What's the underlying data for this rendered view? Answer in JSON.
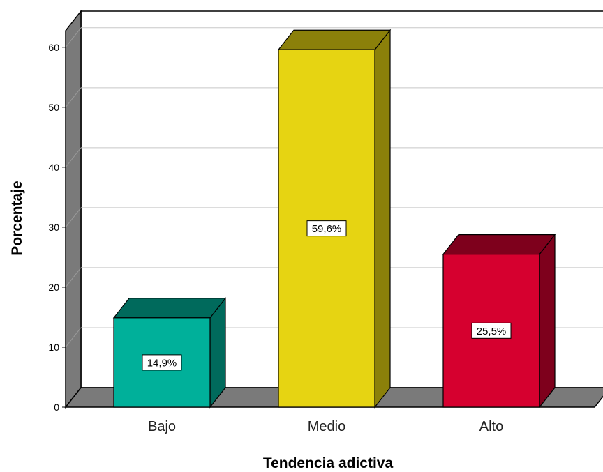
{
  "chart_data": {
    "type": "bar",
    "style": "3d",
    "categories": [
      "Bajo",
      "Medio",
      "Alto"
    ],
    "values": [
      14.9,
      59.6,
      25.5
    ],
    "data_labels": [
      "14,9%",
      "59,6%",
      "25,5%"
    ],
    "colors": [
      "#00b09a",
      "#e6d412",
      "#d6002f"
    ],
    "side_colors": [
      "#006a5c",
      "#8b800a",
      "#7e001c"
    ],
    "xlabel": "Tendencia adictiva",
    "ylabel": "Porcentaje",
    "ylim": [
      0,
      63
    ],
    "yticks": [
      0,
      10,
      20,
      30,
      40,
      50,
      60
    ],
    "grid": true,
    "legend": "none"
  }
}
